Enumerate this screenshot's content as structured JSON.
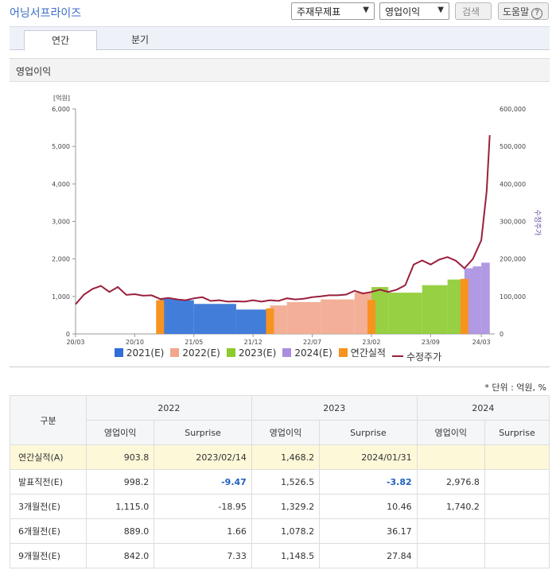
{
  "app": {
    "title": "어닝서프라이즈"
  },
  "controls": {
    "select1": "주재무제표",
    "select2": "영업이익",
    "search_label": "검색",
    "help_label": "도움말",
    "help_glyph": "?"
  },
  "tabs": [
    {
      "label": "연간",
      "active": true
    },
    {
      "label": "분기",
      "active": false
    }
  ],
  "section_title": "영업이익",
  "chart_data": {
    "type": "area",
    "left_axis": {
      "unit_label": "[억원]",
      "ticks": [
        "0",
        "1,000",
        "2,000",
        "3,000",
        "4,000",
        "5,000",
        "6,000"
      ],
      "ylim": [
        0,
        6000
      ]
    },
    "right_axis": {
      "label": "수정주가",
      "ticks": [
        "0",
        "100,000",
        "200,000",
        "300,000",
        "400,000",
        "500,000",
        "600,000"
      ],
      "ylim": [
        0,
        600000
      ]
    },
    "x_ticks": [
      "20/03",
      "20/10",
      "21/05",
      "21/12",
      "22/07",
      "23/02",
      "23/09",
      "24/03"
    ],
    "consensus_series": [
      {
        "name": "2021(E)",
        "color": "#2f6fd6",
        "steps": [
          [
            "2021-01",
            950
          ],
          [
            "2021-03",
            900
          ],
          [
            "2021-05",
            800
          ],
          [
            "2021-10",
            650
          ],
          [
            "2022-02",
            640
          ]
        ]
      },
      {
        "name": "2022(E)",
        "color": "#f2a68c",
        "steps": [
          [
            "2022-02",
            760
          ],
          [
            "2022-04",
            850
          ],
          [
            "2022-08",
            920
          ],
          [
            "2022-12",
            1100
          ],
          [
            "2023-02",
            1000
          ]
        ]
      },
      {
        "name": "2023(E)",
        "color": "#8ccb2e",
        "steps": [
          [
            "2023-02",
            1250
          ],
          [
            "2023-04",
            1100
          ],
          [
            "2023-08",
            1300
          ],
          [
            "2023-11",
            1450
          ],
          [
            "2024-01",
            1500
          ]
        ]
      },
      {
        "name": "2024(E)",
        "color": "#a98ee0",
        "steps": [
          [
            "2024-01",
            1750
          ],
          [
            "2024-02",
            1800
          ],
          [
            "2024-03",
            1900
          ],
          [
            "2024-04",
            3000
          ]
        ]
      }
    ],
    "actual_series": {
      "name": "연간실적",
      "color": "#f7931e",
      "bars": [
        [
          "2021-01",
          900
        ],
        [
          "2022-02",
          680
        ],
        [
          "2023-02",
          904
        ],
        [
          "2024-01",
          1468
        ]
      ]
    },
    "price_series": {
      "name": "수정주가",
      "color": "#9a1f3c",
      "points": [
        [
          "2020-03",
          79000
        ],
        [
          "2020-04",
          105000
        ],
        [
          "2020-05",
          120000
        ],
        [
          "2020-06",
          128000
        ],
        [
          "2020-07",
          112000
        ],
        [
          "2020-08",
          125000
        ],
        [
          "2020-09",
          104000
        ],
        [
          "2020-10",
          106000
        ],
        [
          "2020-11",
          102000
        ],
        [
          "2020-12",
          103000
        ],
        [
          "2021-01",
          93000
        ],
        [
          "2021-02",
          96000
        ],
        [
          "2021-03",
          92000
        ],
        [
          "2021-04",
          90000
        ],
        [
          "2021-05",
          95000
        ],
        [
          "2021-06",
          98000
        ],
        [
          "2021-07",
          88000
        ],
        [
          "2021-08",
          90000
        ],
        [
          "2021-09",
          86000
        ],
        [
          "2021-10",
          87000
        ],
        [
          "2021-11",
          86000
        ],
        [
          "2021-12",
          90000
        ],
        [
          "2022-01",
          86000
        ],
        [
          "2022-02",
          90000
        ],
        [
          "2022-03",
          88000
        ],
        [
          "2022-04",
          95000
        ],
        [
          "2022-05",
          92000
        ],
        [
          "2022-06",
          94000
        ],
        [
          "2022-07",
          98000
        ],
        [
          "2022-08",
          100000
        ],
        [
          "2022-09",
          103000
        ],
        [
          "2022-10",
          103000
        ],
        [
          "2022-11",
          105000
        ],
        [
          "2022-12",
          115000
        ],
        [
          "2023-01",
          108000
        ],
        [
          "2023-02",
          112000
        ],
        [
          "2023-03",
          118000
        ],
        [
          "2023-04",
          112000
        ],
        [
          "2023-05",
          118000
        ],
        [
          "2023-06",
          130000
        ],
        [
          "2023-07",
          185000
        ],
        [
          "2023-08",
          196000
        ],
        [
          "2023-09",
          185000
        ],
        [
          "2023-10",
          198000
        ],
        [
          "2023-11",
          205000
        ],
        [
          "2023-12",
          195000
        ],
        [
          "2024-01",
          175000
        ],
        [
          "2024-02",
          200000
        ],
        [
          "2024-03",
          250000
        ],
        [
          "2024-03-20",
          380000
        ],
        [
          "2024-04",
          530000
        ]
      ]
    },
    "legend": [
      "2021(E)",
      "2022(E)",
      "2023(E)",
      "2024(E)",
      "연간실적",
      "수정주가"
    ]
  },
  "unit_note": "* 단위 : 억원, %",
  "table": {
    "corner": "구분",
    "years": [
      "2022",
      "2023",
      "2024"
    ],
    "subheaders": [
      "영업이익",
      "Surprise"
    ],
    "rows": [
      {
        "label": "연간실적(A)",
        "highlight": true,
        "cells": [
          "903.8",
          "2023/02/14",
          "1,468.2",
          "2024/01/31",
          "",
          ""
        ]
      },
      {
        "label": "발표직전(E)",
        "cells": [
          "998.2",
          "-9.47",
          "1,526.5",
          "-3.82",
          "2,976.8",
          ""
        ]
      },
      {
        "label": "3개월전(E)",
        "cells": [
          "1,115.0",
          "-18.95",
          "1,329.2",
          "10.46",
          "1,740.2",
          ""
        ]
      },
      {
        "label": "6개월전(E)",
        "cells": [
          "889.0",
          "1.66",
          "1,078.2",
          "36.17",
          "",
          ""
        ]
      },
      {
        "label": "9개월전(E)",
        "cells": [
          "842.0",
          "7.33",
          "1,148.5",
          "27.84",
          "",
          ""
        ]
      }
    ]
  }
}
